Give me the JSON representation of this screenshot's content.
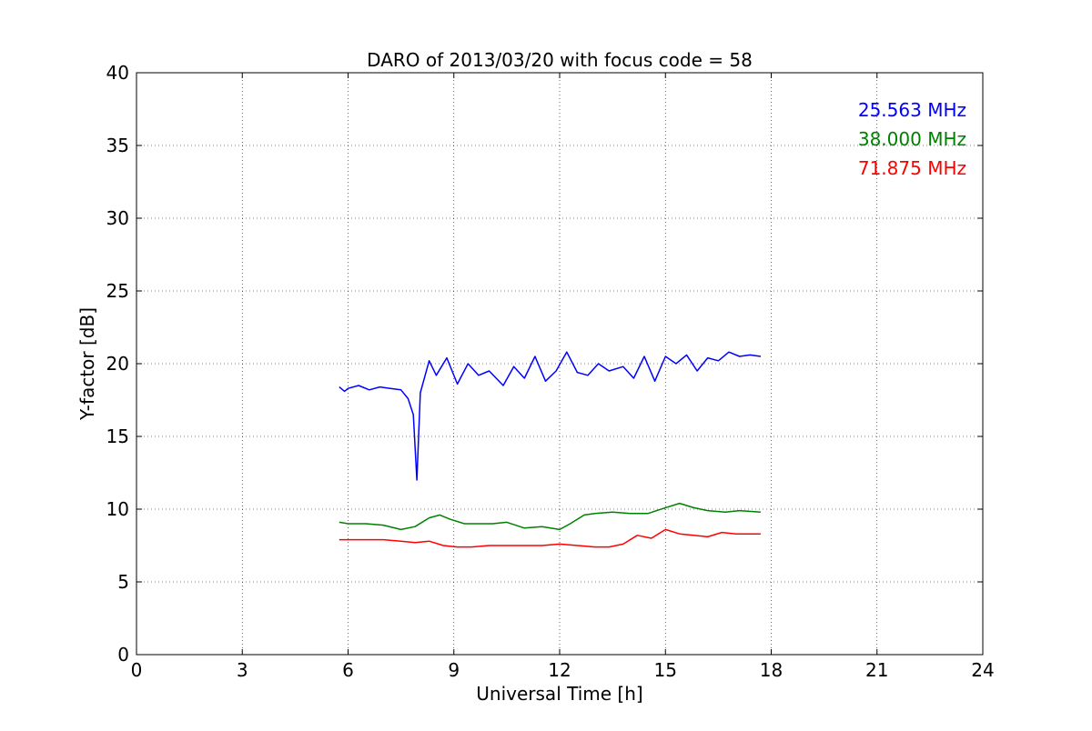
{
  "chart_data": {
    "type": "line",
    "title": "DARO of 2013/03/20 with focus code = 58",
    "xlabel": "Universal Time [h]",
    "ylabel": "Y-factor [dB]",
    "xlim": [
      0,
      24
    ],
    "ylim": [
      0,
      40
    ],
    "xticks": [
      0,
      3,
      6,
      9,
      12,
      15,
      18,
      21,
      24
    ],
    "yticks": [
      0,
      5,
      10,
      15,
      20,
      25,
      30,
      35,
      40
    ],
    "grid": true,
    "legend_position": "top-right",
    "series": [
      {
        "name": "25.563 MHz",
        "color": "#0000ff",
        "x": [
          5.75,
          5.9,
          6.0,
          6.3,
          6.6,
          6.9,
          7.2,
          7.5,
          7.7,
          7.85,
          7.95,
          8.05,
          8.3,
          8.5,
          8.8,
          9.1,
          9.4,
          9.7,
          10.0,
          10.4,
          10.7,
          11.0,
          11.3,
          11.6,
          11.9,
          12.2,
          12.5,
          12.8,
          13.1,
          13.4,
          13.8,
          14.1,
          14.4,
          14.7,
          15.0,
          15.3,
          15.6,
          15.9,
          16.2,
          16.5,
          16.8,
          17.1,
          17.4,
          17.7
        ],
        "y": [
          18.4,
          18.1,
          18.3,
          18.5,
          18.2,
          18.4,
          18.3,
          18.2,
          17.6,
          16.5,
          12.0,
          18.0,
          20.2,
          19.2,
          20.4,
          18.6,
          20.0,
          19.2,
          19.5,
          18.5,
          19.8,
          19.0,
          20.5,
          18.8,
          19.5,
          20.8,
          19.4,
          19.2,
          20.0,
          19.5,
          19.8,
          19.0,
          20.5,
          18.8,
          20.5,
          20.0,
          20.6,
          19.5,
          20.4,
          20.2,
          20.8,
          20.5,
          20.6,
          20.5
        ]
      },
      {
        "name": "38.000 MHz",
        "color": "#008000",
        "x": [
          5.75,
          6.0,
          6.5,
          7.0,
          7.5,
          7.9,
          8.3,
          8.6,
          8.9,
          9.3,
          9.7,
          10.1,
          10.5,
          11.0,
          11.5,
          12.0,
          12.3,
          12.7,
          13.0,
          13.5,
          14.0,
          14.5,
          15.0,
          15.4,
          15.8,
          16.2,
          16.7,
          17.1,
          17.7
        ],
        "y": [
          9.1,
          9.0,
          9.0,
          8.9,
          8.6,
          8.8,
          9.4,
          9.6,
          9.3,
          9.0,
          9.0,
          9.0,
          9.1,
          8.7,
          8.8,
          8.6,
          9.0,
          9.6,
          9.7,
          9.8,
          9.7,
          9.7,
          10.1,
          10.4,
          10.1,
          9.9,
          9.8,
          9.9,
          9.8
        ]
      },
      {
        "name": "71.875 MHz",
        "color": "#ff0000",
        "x": [
          5.75,
          6.0,
          6.5,
          7.0,
          7.5,
          7.9,
          8.3,
          8.7,
          9.1,
          9.5,
          10.0,
          10.5,
          11.0,
          11.5,
          12.0,
          12.5,
          13.0,
          13.4,
          13.8,
          14.2,
          14.6,
          15.0,
          15.4,
          15.8,
          16.2,
          16.6,
          17.0,
          17.7
        ],
        "y": [
          7.9,
          7.9,
          7.9,
          7.9,
          7.8,
          7.7,
          7.8,
          7.5,
          7.4,
          7.4,
          7.5,
          7.5,
          7.5,
          7.5,
          7.6,
          7.5,
          7.4,
          7.4,
          7.6,
          8.2,
          8.0,
          8.6,
          8.3,
          8.2,
          8.1,
          8.4,
          8.3,
          8.3
        ]
      }
    ]
  }
}
